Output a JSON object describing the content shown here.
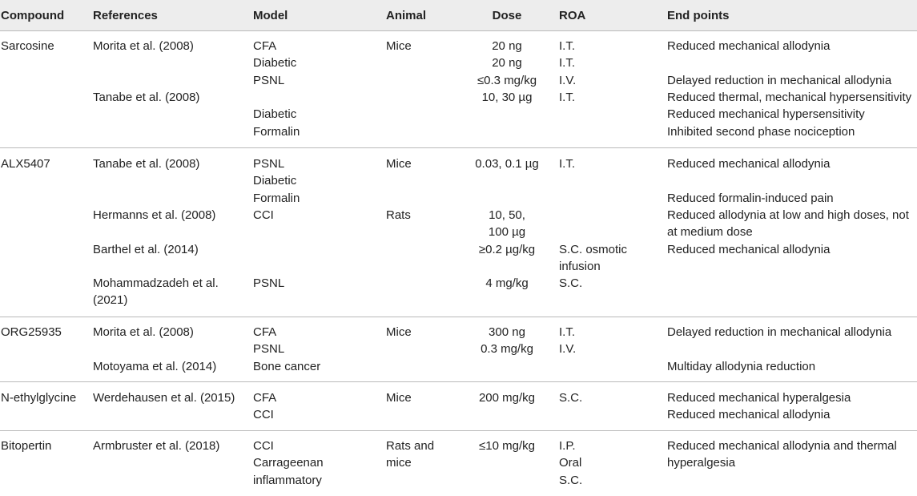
{
  "table": {
    "headers": {
      "compound": "Compound",
      "references": "References",
      "model": "Model",
      "animal": "Animal",
      "dose": "Dose",
      "roa": "ROA",
      "endpoints": "End points"
    },
    "groups": [
      {
        "compound": "Sarcosine",
        "references": [
          "Morita et al. (2008)",
          "",
          "",
          "Tanabe et al. (2008)",
          "",
          ""
        ],
        "model": [
          "CFA",
          "Diabetic",
          "PSNL",
          "",
          "Diabetic",
          "Formalin"
        ],
        "animal": [
          "Mice",
          "",
          "",
          "",
          "",
          ""
        ],
        "dose": [
          "20 ng",
          "20 ng",
          "≤0.3 mg/kg",
          "10, 30 µg",
          "",
          ""
        ],
        "roa": [
          "I.T.",
          "I.T.",
          "I.V.",
          "I.T.",
          "",
          ""
        ],
        "endpoints": [
          "Reduced mechanical allodynia",
          "",
          "Delayed reduction in mechanical allodynia",
          "Reduced thermal, mechanical hypersensitivity",
          "Reduced mechanical hypersensitivity",
          "Inhibited second phase nociception"
        ]
      },
      {
        "compound": "ALX5407",
        "references": [
          "Tanabe et al. (2008)",
          "",
          "",
          "Hermanns et al. (2008)",
          "",
          "Barthel et al. (2014)",
          "",
          "Mohammadzadeh et al.",
          "(2021)"
        ],
        "model": [
          "PSNL",
          "Diabetic",
          "Formalin",
          "CCI",
          "",
          "",
          "",
          "PSNL",
          ""
        ],
        "animal": [
          "Mice",
          "",
          "",
          "Rats",
          "",
          "",
          "",
          "",
          ""
        ],
        "dose": [
          "0.03, 0.1 µg",
          "",
          "",
          "10, 50,",
          "100 µg",
          "≥0.2 µg/kg",
          "",
          "4 mg/kg",
          ""
        ],
        "roa": [
          "I.T.",
          "",
          "",
          "",
          "",
          "S.C. osmotic",
          "infusion",
          "S.C.",
          ""
        ],
        "endpoints": [
          "Reduced mechanical allodynia",
          "",
          "Reduced formalin-induced pain",
          "Reduced allodynia at low and high doses, not",
          "at medium dose",
          "Reduced mechanical allodynia",
          "",
          "",
          ""
        ]
      },
      {
        "compound": "ORG25935",
        "references": [
          "Morita et al. (2008)",
          "",
          "Motoyama et al. (2014)"
        ],
        "model": [
          "CFA",
          "PSNL",
          "Bone cancer"
        ],
        "animal": [
          "Mice",
          "",
          ""
        ],
        "dose": [
          "300 ng",
          "0.3 mg/kg",
          ""
        ],
        "roa": [
          "I.T.",
          "I.V.",
          ""
        ],
        "endpoints": [
          "Delayed reduction in mechanical allodynia",
          "",
          "Multiday allodynia reduction"
        ]
      },
      {
        "compound": "N-ethylglycine",
        "references": [
          "Werdehausen et al. (2015)",
          ""
        ],
        "model": [
          "CFA",
          "CCI"
        ],
        "animal": [
          "Mice",
          ""
        ],
        "dose": [
          "200 mg/kg",
          ""
        ],
        "roa": [
          "S.C.",
          ""
        ],
        "endpoints": [
          "Reduced mechanical hyperalgesia",
          "Reduced mechanical allodynia"
        ]
      },
      {
        "compound": "Bitopertin",
        "references": [
          "Armbruster et al. (2018)",
          "",
          ""
        ],
        "model": [
          "CCI",
          "Carrageenan",
          "inflammatory"
        ],
        "animal": [
          "Rats and",
          "mice",
          ""
        ],
        "dose": [
          "≤10 mg/kg",
          "",
          ""
        ],
        "roa": [
          "I.P.",
          "Oral",
          "S.C."
        ],
        "endpoints": [
          "Reduced mechanical allodynia and thermal",
          "hyperalgesia",
          ""
        ]
      }
    ]
  }
}
